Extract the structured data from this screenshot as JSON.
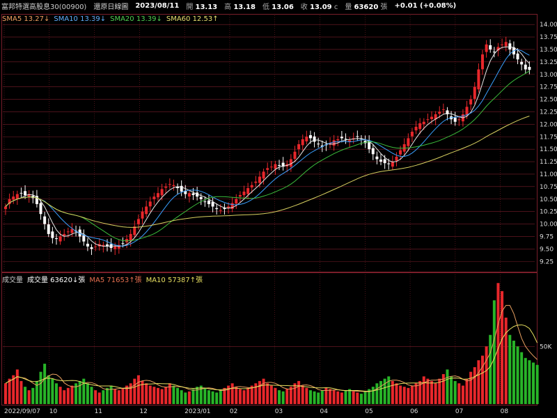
{
  "header": {
    "title": "富邦特選高股息30(00900)",
    "chart_type": "還原日線圖",
    "date": "2023/08/11",
    "open_label": "開",
    "open": "13.13",
    "high_label": "高",
    "high": "13.18",
    "low_label": "低",
    "low": "13.06",
    "close_label": "收",
    "close": "13.09",
    "c_label": "c",
    "volume_label": "量",
    "volume": "63620",
    "volume_unit": "張",
    "change": "+0.01 (+0.08%)"
  },
  "legend": {
    "sma5": "SMA5 13.27↓",
    "sma10": "SMA10 13.39↓",
    "sma20": "SMA20 13.39↓",
    "sma60": "SMA60 12.53↑"
  },
  "volume_legend": {
    "title": "成交量",
    "vol": "成交量 63620↓張",
    "ma5": "MA5 71653↑張",
    "ma10": "MA10 57387↑張"
  },
  "colors": {
    "up": "#e8272b",
    "down": "#28b428",
    "sma5": "#e8e8e8",
    "sma10": "#3aa0ff",
    "sma20": "#3cbd3c",
    "sma60": "#d8d060",
    "ma5": "#e8a060",
    "ma10": "#e8e060",
    "grid": "#7a1e2a"
  },
  "price_axis": [
    "14.00",
    "13.75",
    "13.50",
    "13.25",
    "13.00",
    "12.75",
    "12.50",
    "12.25",
    "12.00",
    "11.75",
    "11.50",
    "11.25",
    "11.00",
    "10.75",
    "10.50",
    "10.25",
    "10.00",
    "9.75",
    "9.50",
    "9.25"
  ],
  "vol_axis": [
    "50K"
  ],
  "x_labels": [
    "2022/09/07",
    "10",
    "11",
    "12",
    "2023/01",
    "02",
    "03",
    "04",
    "05",
    "06",
    "07",
    "08"
  ],
  "chart_data": {
    "type": "candlestick",
    "ylim": [
      9.1,
      14.1
    ],
    "closes": [
      10.35,
      10.5,
      10.55,
      10.6,
      10.62,
      10.58,
      10.6,
      10.52,
      10.4,
      10.2,
      10.0,
      9.8,
      9.72,
      9.7,
      9.75,
      9.8,
      9.85,
      9.9,
      9.85,
      9.75,
      9.65,
      9.55,
      9.5,
      9.55,
      9.6,
      9.58,
      9.55,
      9.52,
      9.55,
      9.58,
      9.6,
      9.7,
      9.8,
      9.95,
      10.1,
      10.25,
      10.35,
      10.45,
      10.55,
      10.62,
      10.7,
      10.75,
      10.8,
      10.78,
      10.72,
      10.65,
      10.6,
      10.62,
      10.58,
      10.55,
      10.5,
      10.45,
      10.4,
      10.35,
      10.3,
      10.28,
      10.3,
      10.35,
      10.42,
      10.5,
      10.58,
      10.65,
      10.72,
      10.78,
      10.85,
      10.95,
      11.05,
      11.12,
      11.15,
      11.2,
      11.18,
      11.15,
      11.2,
      11.3,
      11.45,
      11.6,
      11.7,
      11.75,
      11.72,
      11.65,
      11.6,
      11.55,
      11.58,
      11.62,
      11.68,
      11.7,
      11.72,
      11.7,
      11.68,
      11.72,
      11.75,
      11.7,
      11.62,
      11.5,
      11.4,
      11.3,
      11.25,
      11.22,
      11.2,
      11.25,
      11.35,
      11.48,
      11.6,
      11.72,
      11.85,
      11.95,
      12.02,
      12.05,
      12.1,
      12.15,
      12.2,
      12.25,
      12.3,
      12.2,
      12.1,
      12.05,
      12.1,
      12.2,
      12.35,
      12.5,
      12.75,
      13.1,
      13.4,
      13.6,
      13.5,
      13.45,
      13.55,
      13.6,
      13.65,
      13.5,
      13.4,
      13.3,
      13.2,
      13.1,
      13.09
    ],
    "volumes": [
      18,
      22,
      25,
      30,
      20,
      15,
      12,
      14,
      20,
      28,
      35,
      25,
      22,
      18,
      15,
      12,
      14,
      16,
      18,
      20,
      22,
      18,
      15,
      12,
      10,
      12,
      14,
      16,
      13,
      12,
      14,
      16,
      18,
      22,
      25,
      20,
      18,
      16,
      15,
      14,
      13,
      15,
      18,
      16,
      14,
      12,
      10,
      11,
      13,
      15,
      16,
      14,
      12,
      11,
      10,
      12,
      14,
      16,
      18,
      15,
      13,
      12,
      14,
      16,
      18,
      20,
      22,
      18,
      16,
      14,
      12,
      11,
      13,
      15,
      18,
      20,
      16,
      14,
      12,
      11,
      10,
      12,
      14,
      13,
      12,
      11,
      10,
      12,
      13,
      11,
      10,
      9,
      11,
      13,
      15,
      18,
      20,
      22,
      24,
      20,
      18,
      16,
      15,
      14,
      16,
      18,
      20,
      24,
      22,
      20,
      18,
      22,
      26,
      30,
      24,
      20,
      18,
      16,
      22,
      28,
      32,
      38,
      42,
      50,
      60,
      90,
      105,
      98,
      75,
      60,
      55,
      50,
      45,
      40,
      38,
      36,
      34
    ]
  }
}
